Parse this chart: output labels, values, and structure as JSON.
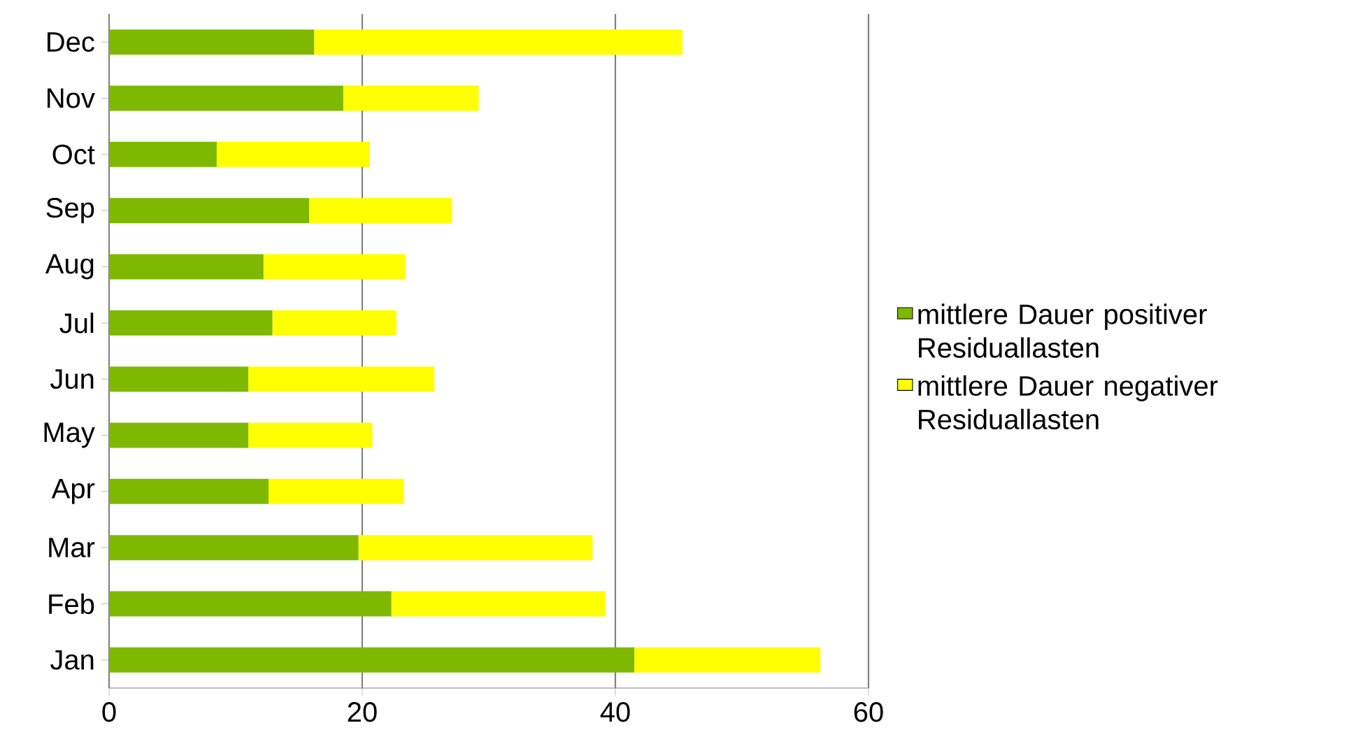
{
  "chart_data": {
    "type": "bar",
    "orientation": "horizontal",
    "stacked": true,
    "categories": [
      "Dec",
      "Nov",
      "Oct",
      "Sep",
      "Aug",
      "Jul",
      "Jun",
      "May",
      "Apr",
      "Mar",
      "Feb",
      "Jan"
    ],
    "series": [
      {
        "name": "mittlere Dauer positiver Residuallasten",
        "color": "#7fb800",
        "values": [
          16.2,
          18.5,
          8.5,
          15.8,
          12.2,
          12.9,
          11.0,
          11.0,
          12.6,
          19.7,
          22.3,
          41.5
        ]
      },
      {
        "name": "mittlere Dauer negativer Residuallasten",
        "color": "#ffff00",
        "values": [
          29.1,
          10.7,
          12.1,
          11.3,
          11.2,
          9.8,
          14.7,
          9.8,
          10.7,
          18.5,
          16.9,
          14.7
        ]
      }
    ],
    "xlim": [
      0,
      60
    ],
    "xticks": [
      0,
      20,
      40,
      60
    ],
    "grid": "x",
    "legend": "right"
  }
}
